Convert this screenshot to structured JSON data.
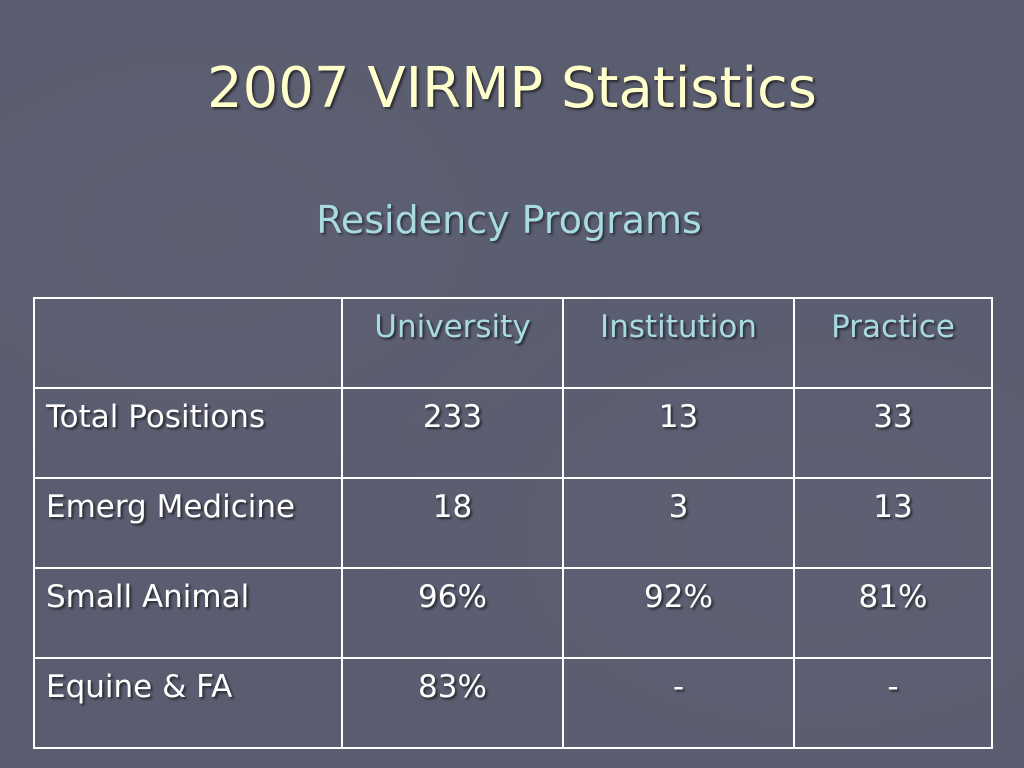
{
  "slide": {
    "title": "2007 VIRMP Statistics",
    "subtitle": "Residency Programs"
  },
  "table": {
    "corner": "",
    "columns": [
      "University",
      "Institution",
      "Practice"
    ],
    "rows": [
      {
        "label": "Total Positions",
        "values": [
          "233",
          "13",
          "33"
        ]
      },
      {
        "label": "Emerg Medicine",
        "values": [
          "18",
          "3",
          "13"
        ]
      },
      {
        "label": "Small Animal",
        "values": [
          "96%",
          "92%",
          "81%"
        ]
      },
      {
        "label": "Equine & FA",
        "values": [
          "83%",
          "-",
          "-"
        ]
      }
    ]
  },
  "colors": {
    "background": "#5a5c6f",
    "title": "#ffffcc",
    "accent": "#a8dbe0",
    "text": "#ffffff"
  }
}
